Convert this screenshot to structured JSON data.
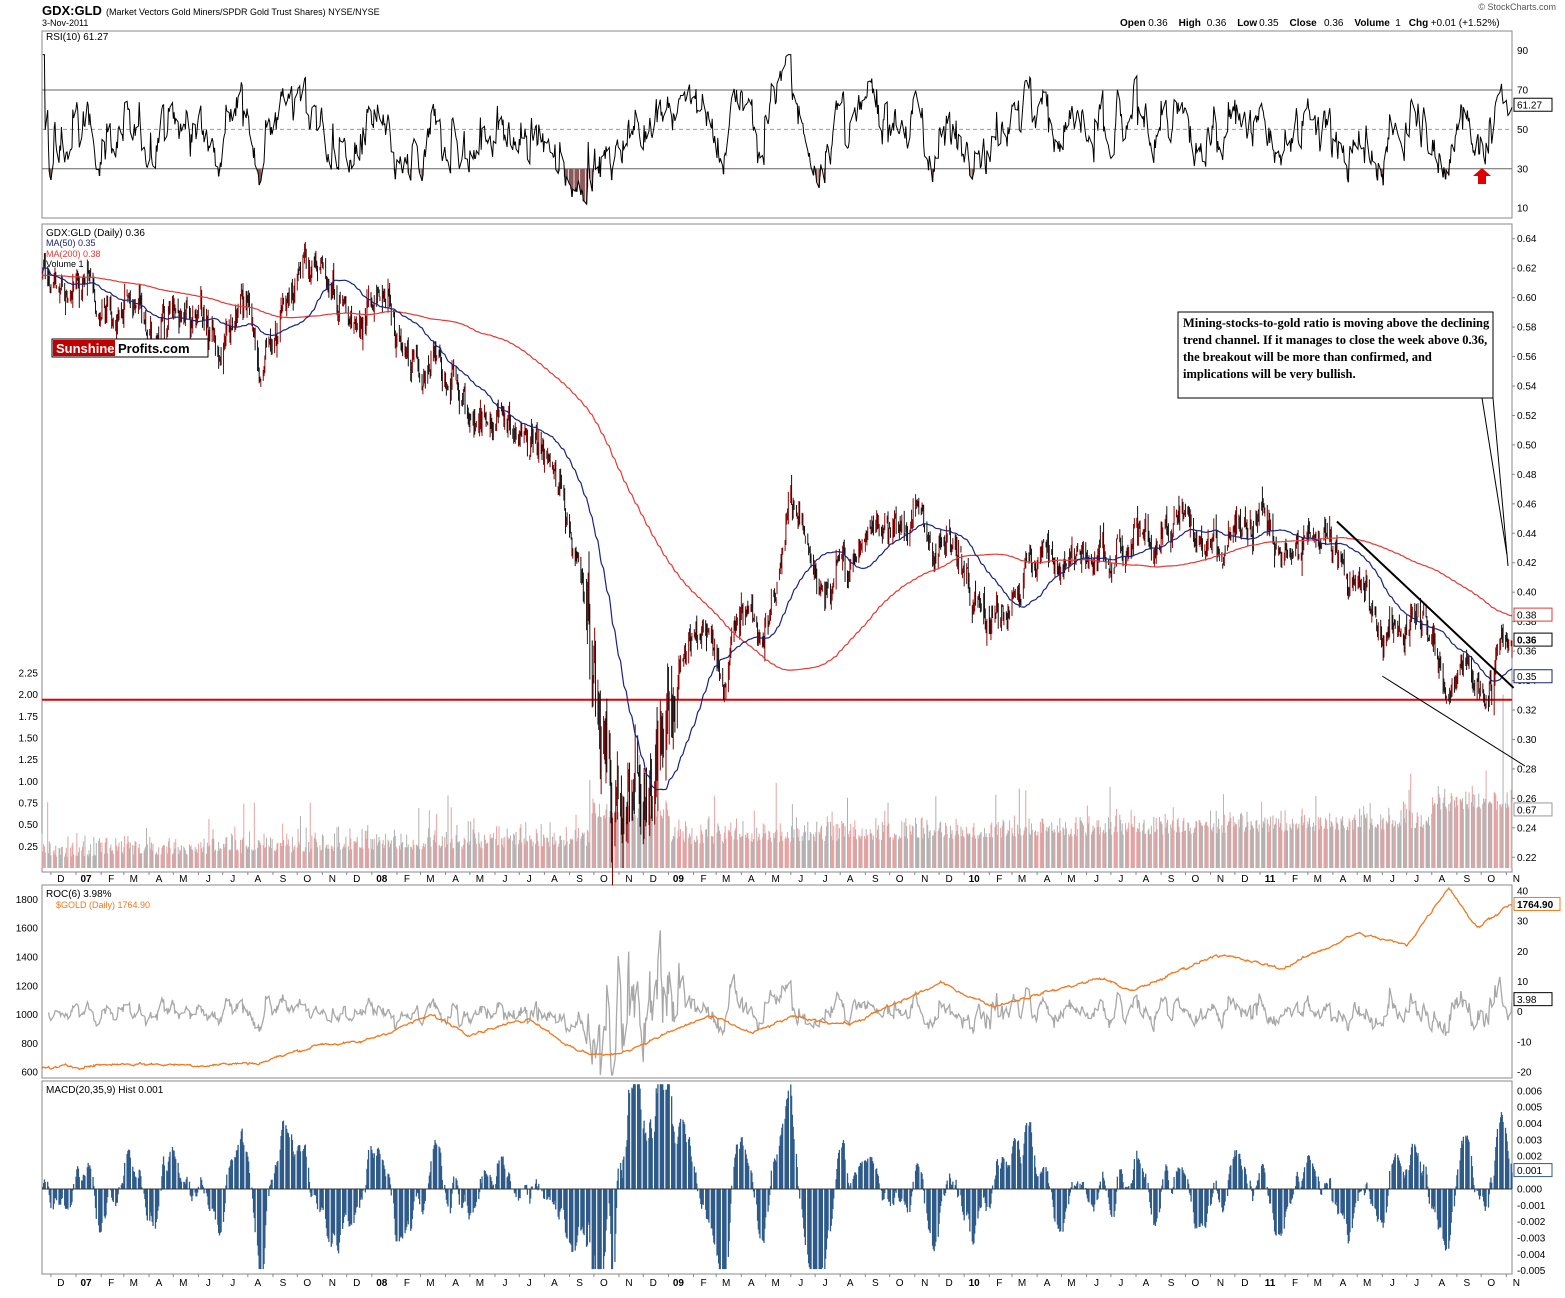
{
  "header": {
    "symbol": "GDX:GLD",
    "description": "(Market Vectors Gold Miners/SPDR Gold Trust Shares) NYSE/NYSE",
    "date": "3-Nov-2011",
    "watermark": "© StockCharts.com",
    "quote_labels": [
      "Open",
      "High",
      "Low",
      "Close",
      "Volume",
      "Chg"
    ],
    "quote_values": [
      "0.36",
      "0.36",
      "0.35",
      "0.36",
      "1",
      "+0.01 (+1.52%)"
    ]
  },
  "logo": {
    "part1": "Sunshine",
    "part2": "Profits.com"
  },
  "annotation": "Mining-stocks-to-gold ratio is moving above the declining trend channel. If it manages to close the week above 0.36, the breakout will be more than confirmed, and implications will be very bullish.",
  "colors": {
    "price_up": "#8b0000",
    "price_down": "#111111",
    "ma50": "#1a237e",
    "ma200": "#e53935",
    "support": "#e00000",
    "gold": "#f07820",
    "roc": "#a8a8a8",
    "macd": "#2e5b8a",
    "vol_up": "#e9a0a0",
    "vol_down": "#b0b0b0",
    "rsi_fill": "#8b5a5a",
    "arrow": "#e00000"
  },
  "x_axis": [
    "D",
    "07",
    "F",
    "M",
    "A",
    "M",
    "J",
    "J",
    "A",
    "S",
    "O",
    "N",
    "D",
    "08",
    "F",
    "M",
    "A",
    "M",
    "J",
    "J",
    "A",
    "S",
    "O",
    "N",
    "D",
    "09",
    "F",
    "M",
    "A",
    "M",
    "J",
    "J",
    "A",
    "S",
    "O",
    "N",
    "D",
    "10",
    "F",
    "M",
    "A",
    "M",
    "J",
    "J",
    "A",
    "S",
    "O",
    "N",
    "D",
    "11",
    "F",
    "M",
    "A",
    "M",
    "J",
    "J",
    "A",
    "S",
    "O",
    "N"
  ],
  "x_axis_bold": [
    "07",
    "08",
    "09",
    "10",
    "11"
  ],
  "chart_data": [
    {
      "type": "line",
      "title": "RSI(10) 61.27",
      "last_value": 61.27,
      "ylim": [
        5,
        100
      ],
      "ticks": [
        "90",
        "70",
        "50",
        "30",
        "10"
      ],
      "overbought": 70,
      "oversold": 30,
      "midline": 50,
      "value_label": "61.27"
    },
    {
      "type": "candlestick",
      "title": "GDX:GLD (Daily) 0.36",
      "ylim": [
        0.21,
        0.65
      ],
      "price_ticks": [
        "0.64",
        "0.62",
        "0.60",
        "0.58",
        "0.56",
        "0.54",
        "0.52",
        "0.50",
        "0.48",
        "0.46",
        "0.44",
        "0.42",
        "0.40",
        "0.38",
        "0.36",
        "0.34",
        "0.32",
        "0.30",
        "0.28",
        "0.26",
        "0.24",
        "0.22"
      ],
      "volume_ticks": [
        "2.25",
        "2.00",
        "1.75",
        "1.50",
        "1.25",
        "1.00",
        "0.75",
        "0.50",
        "0.25"
      ],
      "volume_ylim": [
        0,
        2.4
      ],
      "legend": [
        "GDX:GLD (Daily) 0.36",
        "MA(50) 0.35",
        "MA(200) 0.38",
        "Volume 1"
      ],
      "value_labels": {
        "ma200": "0.38",
        "close": "0.36",
        "ma50": "0.35",
        "volume": "0.67"
      },
      "support_level": 0.327,
      "close_key_points": [
        {
          "x": "2006-12-01",
          "y": 0.61
        },
        {
          "x": "2007-02-01",
          "y": 0.6
        },
        {
          "x": "2007-03-15",
          "y": 0.58
        },
        {
          "x": "2007-05-01",
          "y": 0.59
        },
        {
          "x": "2007-06-20",
          "y": 0.58
        },
        {
          "x": "2007-07-25",
          "y": 0.6
        },
        {
          "x": "2007-08-15",
          "y": 0.56
        },
        {
          "x": "2007-09-10",
          "y": 0.59
        },
        {
          "x": "2007-10-10",
          "y": 0.62
        },
        {
          "x": "2007-11-05",
          "y": 0.62
        },
        {
          "x": "2007-12-05",
          "y": 0.58
        },
        {
          "x": "2008-01-15",
          "y": 0.59
        },
        {
          "x": "2008-02-15",
          "y": 0.55
        },
        {
          "x": "2008-03-10",
          "y": 0.54
        },
        {
          "x": "2008-04-05",
          "y": 0.56
        },
        {
          "x": "2008-05-01",
          "y": 0.52
        },
        {
          "x": "2008-05-25",
          "y": 0.52
        },
        {
          "x": "2008-06-20",
          "y": 0.51
        },
        {
          "x": "2008-07-20",
          "y": 0.5
        },
        {
          "x": "2008-08-10",
          "y": 0.48
        },
        {
          "x": "2008-08-25",
          "y": 0.46
        },
        {
          "x": "2008-09-15",
          "y": 0.42
        },
        {
          "x": "2008-09-28",
          "y": 0.39
        },
        {
          "x": "2008-10-10",
          "y": 0.3
        },
        {
          "x": "2008-10-24",
          "y": 0.24
        },
        {
          "x": "2008-11-10",
          "y": 0.28
        },
        {
          "x": "2008-11-25",
          "y": 0.26
        },
        {
          "x": "2008-12-10",
          "y": 0.3
        },
        {
          "x": "2008-12-25",
          "y": 0.33
        },
        {
          "x": "2009-01-20",
          "y": 0.36
        },
        {
          "x": "2009-02-15",
          "y": 0.38
        },
        {
          "x": "2009-03-10",
          "y": 0.34
        },
        {
          "x": "2009-04-05",
          "y": 0.4
        },
        {
          "x": "2009-04-25",
          "y": 0.37
        },
        {
          "x": "2009-05-20",
          "y": 0.42
        },
        {
          "x": "2009-06-05",
          "y": 0.46
        },
        {
          "x": "2009-07-01",
          "y": 0.41
        },
        {
          "x": "2009-07-25",
          "y": 0.42
        },
        {
          "x": "2009-08-20",
          "y": 0.41
        },
        {
          "x": "2009-09-15",
          "y": 0.44
        },
        {
          "x": "2009-10-05",
          "y": 0.46
        },
        {
          "x": "2009-10-25",
          "y": 0.45
        },
        {
          "x": "2009-11-20",
          "y": 0.44
        },
        {
          "x": "2009-12-15",
          "y": 0.43
        },
        {
          "x": "2010-01-10",
          "y": 0.42
        },
        {
          "x": "2010-02-05",
          "y": 0.38
        },
        {
          "x": "2010-03-05",
          "y": 0.41
        },
        {
          "x": "2010-04-10",
          "y": 0.42
        },
        {
          "x": "2010-05-10",
          "y": 0.43
        },
        {
          "x": "2010-06-05",
          "y": 0.42
        },
        {
          "x": "2010-07-01",
          "y": 0.41
        },
        {
          "x": "2010-08-01",
          "y": 0.43
        },
        {
          "x": "2010-09-01",
          "y": 0.44
        },
        {
          "x": "2010-10-01",
          "y": 0.44
        },
        {
          "x": "2010-11-01",
          "y": 0.43
        },
        {
          "x": "2010-12-01",
          "y": 0.45
        },
        {
          "x": "2011-01-01",
          "y": 0.45
        },
        {
          "x": "2011-02-01",
          "y": 0.42
        },
        {
          "x": "2011-03-05",
          "y": 0.43
        },
        {
          "x": "2011-04-05",
          "y": 0.44
        },
        {
          "x": "2011-05-01",
          "y": 0.4
        },
        {
          "x": "2011-06-01",
          "y": 0.37
        },
        {
          "x": "2011-07-01",
          "y": 0.38
        },
        {
          "x": "2011-08-01",
          "y": 0.37
        },
        {
          "x": "2011-08-22",
          "y": 0.33
        },
        {
          "x": "2011-09-10",
          "y": 0.37
        },
        {
          "x": "2011-09-25",
          "y": 0.34
        },
        {
          "x": "2011-10-05",
          "y": 0.33
        },
        {
          "x": "2011-10-20",
          "y": 0.35
        },
        {
          "x": "2011-11-03",
          "y": 0.36
        }
      ],
      "trendlines": [
        {
          "from": {
            "x": "2011-04-06",
            "y": 0.448
          },
          "to": {
            "x": "2011-11-10",
            "y": 0.335
          }
        },
        {
          "from": {
            "x": "2011-06-01",
            "y": 0.343
          },
          "to": {
            "x": "2011-11-24",
            "y": 0.282
          }
        }
      ]
    },
    {
      "type": "line",
      "title": "ROC(6) 3.98%",
      "ylim_right": [
        -22,
        42
      ],
      "right_ticks": [
        "40",
        "30",
        "20",
        "10",
        "0",
        "-10",
        "-20"
      ],
      "value_label": "3.98",
      "last_value": 3.98
    },
    {
      "type": "line",
      "title": "$GOLD (Daily) 1764.90",
      "ylim_left": [
        560,
        1900
      ],
      "left_ticks": [
        "1800",
        "1600",
        "1400",
        "1200",
        "1000",
        "800",
        "600"
      ],
      "value_label": "1764.90",
      "key_points": [
        {
          "x": "2006-12-01",
          "y": 630
        },
        {
          "x": "2007-03-01",
          "y": 660
        },
        {
          "x": "2007-06-01",
          "y": 650
        },
        {
          "x": "2007-08-15",
          "y": 665
        },
        {
          "x": "2007-11-01",
          "y": 800
        },
        {
          "x": "2007-12-15",
          "y": 800
        },
        {
          "x": "2008-03-15",
          "y": 995
        },
        {
          "x": "2008-05-01",
          "y": 870
        },
        {
          "x": "2008-07-15",
          "y": 975
        },
        {
          "x": "2008-09-10",
          "y": 745
        },
        {
          "x": "2008-10-25",
          "y": 715
        },
        {
          "x": "2009-02-20",
          "y": 990
        },
        {
          "x": "2009-04-15",
          "y": 870
        },
        {
          "x": "2009-06-01",
          "y": 980
        },
        {
          "x": "2009-08-15",
          "y": 935
        },
        {
          "x": "2009-12-03",
          "y": 1218
        },
        {
          "x": "2010-02-05",
          "y": 1060
        },
        {
          "x": "2010-06-20",
          "y": 1255
        },
        {
          "x": "2010-07-28",
          "y": 1160
        },
        {
          "x": "2010-11-08",
          "y": 1420
        },
        {
          "x": "2011-01-28",
          "y": 1320
        },
        {
          "x": "2011-05-01",
          "y": 1565
        },
        {
          "x": "2011-07-01",
          "y": 1480
        },
        {
          "x": "2011-08-22",
          "y": 1890
        },
        {
          "x": "2011-09-26",
          "y": 1600
        },
        {
          "x": "2011-11-03",
          "y": 1764.9
        }
      ]
    },
    {
      "type": "bar",
      "title": "MACD(20,35,9) Hist 0.001",
      "ylim": [
        -0.0052,
        0.0066
      ],
      "ticks": [
        "0.006",
        "0.005",
        "0.004",
        "0.003",
        "0.002",
        "0.001",
        "0.000",
        "-0.001",
        "-0.002",
        "-0.003",
        "-0.004",
        "-0.005"
      ],
      "value_label": "0.001",
      "last_value": 0.001
    }
  ]
}
